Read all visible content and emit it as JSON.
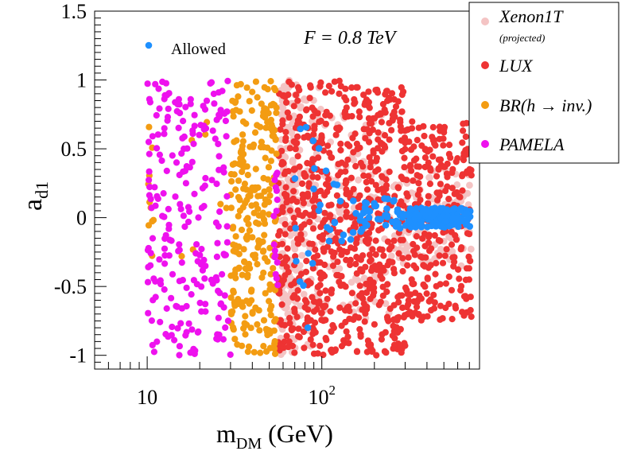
{
  "chart_data": {
    "type": "scatter",
    "annotation": "F = 0.8 TeV",
    "xlabel_main": "m",
    "xlabel_sub": "DM",
    "xlabel_unit": " (GeV)",
    "ylabel_main": "a",
    "ylabel_sub": "d1",
    "x_scale": "log",
    "xlim": [
      5.0,
      800
    ],
    "ylim": [
      -1.1,
      1.5
    ],
    "x_ticks": [
      {
        "value": 10,
        "label": "10"
      },
      {
        "value": 100,
        "label": "10",
        "sup": "2"
      }
    ],
    "y_ticks": [
      {
        "value": 1.5,
        "label": "1.5"
      },
      {
        "value": 1,
        "label": "1"
      },
      {
        "value": 0.5,
        "label": "0.5"
      },
      {
        "value": 0,
        "label": "0"
      },
      {
        "value": -0.5,
        "label": "-0.5"
      },
      {
        "value": -1,
        "label": "-1"
      }
    ],
    "legend_inner": {
      "label": "Allowed",
      "color": "#1e90ff",
      "position": "top-left"
    },
    "legend_outer": [
      {
        "label": "Xenon1T",
        "sublabel": "(projected)",
        "color": "#f4c4c4"
      },
      {
        "label": "LUX",
        "color": "#ee3333"
      },
      {
        "label": "BR(h → inv.)",
        "color": "#f39c12"
      },
      {
        "label": "PAMELA",
        "color": "#ee11ee"
      }
    ],
    "series": [
      {
        "name": "Xenon1T (projected)",
        "color": "#f4c4c4",
        "r": 4.4,
        "regions": [
          {
            "x": [
              58,
              72
            ],
            "y": [
              -1.0,
              1.0
            ],
            "count": 160
          },
          {
            "x": [
              72,
              100
            ],
            "y": [
              -0.95,
              0.95
            ],
            "count": 60
          },
          {
            "x": [
              100,
              250
            ],
            "y": [
              -0.75,
              0.75
            ],
            "count": 110
          },
          {
            "x": [
              250,
              720
            ],
            "y": [
              -0.35,
              0.35
            ],
            "count": 120
          }
        ]
      },
      {
        "name": "LUX",
        "color": "#ee3333",
        "r": 4.1,
        "regions": [
          {
            "x": [
              56,
              140
            ],
            "y": [
              -1.0,
              1.0
            ],
            "count": 400
          },
          {
            "x": [
              140,
              300
            ],
            "y": [
              -1.0,
              0.95
            ],
            "count": 330
          },
          {
            "x": [
              300,
              720
            ],
            "y": [
              -0.75,
              0.7
            ],
            "count": 260
          }
        ]
      },
      {
        "name": "BR(h -> inv.)",
        "color": "#f39c12",
        "r": 4.1,
        "regions": [
          {
            "x": [
              30,
              55
            ],
            "y": [
              -1.0,
              1.0
            ],
            "count": 260
          },
          {
            "x": [
              10,
              11
            ],
            "y": [
              -0.4,
              0.95
            ],
            "count": 10
          },
          {
            "x": [
              14,
              30
            ],
            "y": [
              -0.5,
              0.9
            ],
            "count": 8
          }
        ]
      },
      {
        "name": "PAMELA",
        "color": "#ee11ee",
        "r": 4.1,
        "regions": [
          {
            "x": [
              10,
              30
            ],
            "y": [
              -1.0,
              1.0
            ],
            "count": 230
          },
          {
            "x": [
              53,
              56
            ],
            "y": [
              -0.6,
              0.35
            ],
            "count": 16
          }
        ]
      },
      {
        "name": "Allowed",
        "color": "#1e90ff",
        "r": 4.3,
        "regions": [
          {
            "x": [
              300,
              720
            ],
            "y": [
              -0.07,
              0.07
            ],
            "count": 150
          },
          {
            "x": [
              150,
              300
            ],
            "y": [
              -0.12,
              0.14
            ],
            "count": 45
          },
          {
            "x": [
              90,
              150
            ],
            "y": [
              -0.22,
              0.6
            ],
            "count": 16
          },
          {
            "x": [
              70,
              90
            ],
            "y": [
              -0.85,
              0.7
            ],
            "count": 12
          }
        ]
      }
    ]
  }
}
